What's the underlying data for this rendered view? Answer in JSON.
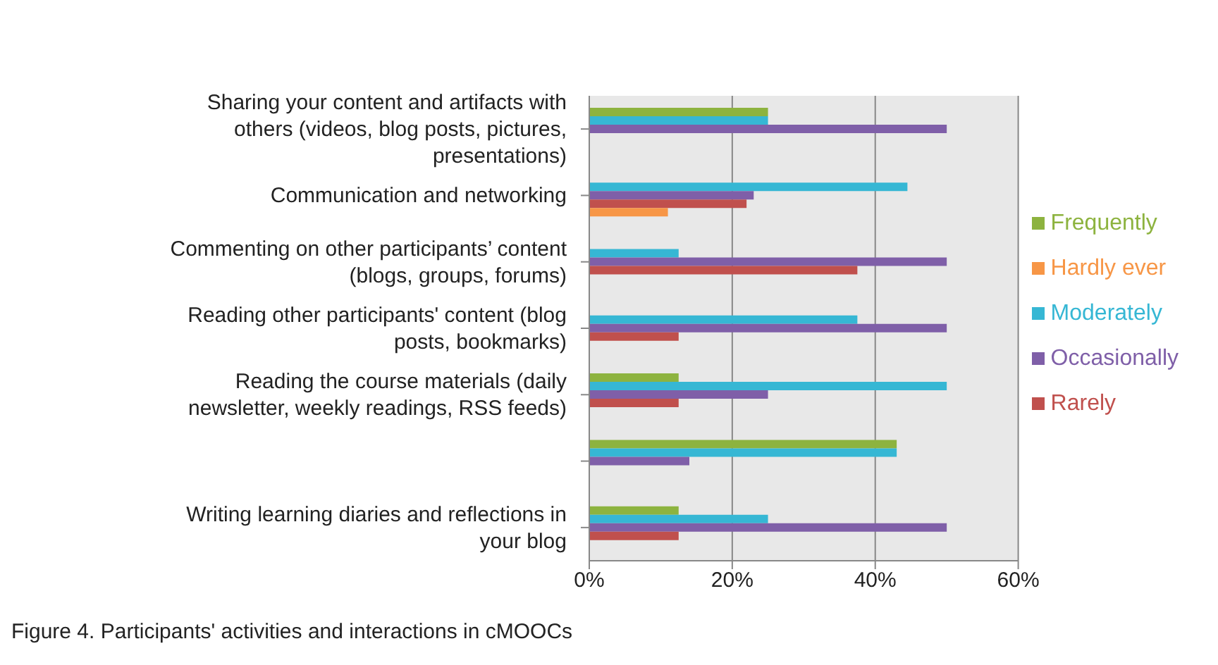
{
  "chart_data": {
    "type": "bar",
    "orientation": "horizontal",
    "categories": [
      "Sharing your content and artifacts with others (videos, blog posts, pictures, presentations)",
      "Communication and networking",
      "Commenting on other participants’ content (blogs, groups, forums)",
      "Reading other participants' content (blog posts, bookmarks)",
      "Reading the course materials (daily newsletter, weekly readings, RSS feeds)",
      null,
      "Writing learning diaries and reflections in your blog"
    ],
    "series": [
      {
        "name": "Frequently",
        "color": "#8db33f",
        "values": [
          25,
          null,
          null,
          null,
          12.5,
          43,
          12.5
        ]
      },
      {
        "name": "Moderately",
        "color": "#36b7d4",
        "values": [
          25,
          44.5,
          12.5,
          37.5,
          50,
          43,
          25
        ]
      },
      {
        "name": "Occasionally",
        "color": "#7f5fa8",
        "values": [
          50,
          23,
          50,
          50,
          25,
          14,
          50
        ]
      },
      {
        "name": "Rarely",
        "color": "#c0504d",
        "values": [
          null,
          22,
          37.5,
          12.5,
          12.5,
          null,
          12.5
        ]
      },
      {
        "name": "Hardly ever",
        "color": "#f79646",
        "values": [
          null,
          11,
          null,
          null,
          null,
          null,
          null
        ]
      }
    ],
    "xlim": [
      0,
      60
    ],
    "xticks": [
      {
        "value": 0,
        "label": "0%"
      },
      {
        "value": 20,
        "label": "20%"
      },
      {
        "value": 40,
        "label": "40%"
      },
      {
        "value": 60,
        "label": "60%"
      }
    ],
    "grid": "x",
    "legend": "right",
    "annotations": [
      "Figure 4. Participants' activities and interactions in cMOOCs"
    ]
  }
}
